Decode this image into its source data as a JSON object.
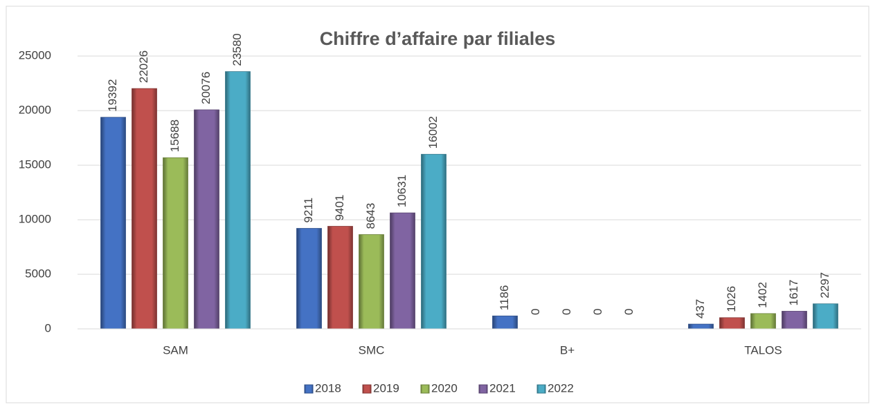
{
  "chart_data": {
    "type": "bar",
    "title": "Chiffre d’affaire par filiales",
    "categories": [
      "SAM",
      "SMC",
      "B+",
      "TALOS"
    ],
    "series": [
      {
        "name": "2018",
        "color": "#4472c4",
        "values": [
          19392,
          9211,
          1186,
          437
        ]
      },
      {
        "name": "2019",
        "color": "#c0504d",
        "values": [
          22026,
          9401,
          0,
          1026
        ]
      },
      {
        "name": "2020",
        "color": "#9bbb59",
        "values": [
          15688,
          8643,
          0,
          1402
        ]
      },
      {
        "name": "2021",
        "color": "#8064a2",
        "values": [
          20076,
          10631,
          0,
          1617
        ]
      },
      {
        "name": "2022",
        "color": "#4bacc6",
        "values": [
          23580,
          16002,
          0,
          2297
        ]
      }
    ],
    "ylim": [
      0,
      29000
    ],
    "yticks": [
      0,
      5000,
      10000,
      15000,
      20000,
      25000
    ],
    "grid": true,
    "legend": "bottom"
  }
}
